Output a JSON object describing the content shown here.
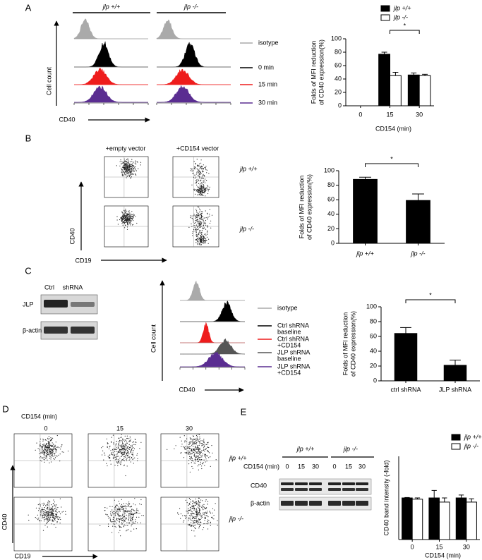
{
  "panel_labels": [
    "A",
    "B",
    "C",
    "D",
    "E"
  ],
  "chart_data": [
    {
      "type": "bar",
      "categories": [
        "0",
        "15",
        "30"
      ],
      "series": [
        {
          "name": "jlp +/+",
          "color": "#000000",
          "values": [
            0,
            77,
            46
          ],
          "errors": [
            null,
            3,
            3
          ]
        },
        {
          "name": "jlp -/-",
          "color": "#ffffff",
          "values": [
            0,
            45,
            45
          ],
          "errors": [
            null,
            5,
            2
          ]
        }
      ],
      "ylim": [
        0,
        100
      ],
      "yticks": [
        0,
        20,
        40,
        60,
        80,
        100
      ],
      "xlabel": "CD154 (min)",
      "ylabel": [
        "Folds of MFI reduction",
        "of CD40  expression(%)"
      ],
      "annotation": "*",
      "legend": "upper right"
    },
    {
      "type": "bar",
      "categories": [
        "jlp +/+",
        "jlp -/-"
      ],
      "values": [
        88,
        59
      ],
      "errors": [
        3,
        9
      ],
      "color": "#000000",
      "ylim": [
        0,
        100
      ],
      "yticks": [
        0,
        20,
        40,
        60,
        80,
        100
      ],
      "ylabel": [
        "Folds of MFI reduction",
        "of CD40  expression(%)"
      ],
      "annotation": "*"
    },
    {
      "type": "bar",
      "categories": [
        "ctrl shRNA",
        "JLP shRNA"
      ],
      "values": [
        64,
        21
      ],
      "errors": [
        8,
        7
      ],
      "color": "#000000",
      "ylim": [
        0,
        100
      ],
      "yticks": [
        0,
        20,
        40,
        60,
        80,
        100
      ],
      "ylabel": [
        "Folds of MFI reduction",
        "of CD40 expression(%)"
      ],
      "annotation": "*"
    },
    {
      "type": "bar",
      "categories": [
        "0",
        "15",
        "30"
      ],
      "series": [
        {
          "name": "jlp +/+",
          "color": "#000000",
          "values": [
            1.0,
            1.0,
            1.0
          ],
          "errors": [
            0.01,
            0.18,
            0.07
          ]
        },
        {
          "name": "jlp -/-",
          "color": "#ffffff",
          "values": [
            0.97,
            0.9,
            0.9
          ],
          "errors": [
            0.03,
            0.1,
            0.08
          ]
        }
      ],
      "ylim": [
        0,
        2
      ],
      "xlabel": "CD154 (min)",
      "ylabel": [
        "CD40 band intensity (-fold)"
      ],
      "legend": "upper right"
    }
  ],
  "panel_a": {
    "genotypes": [
      "jlp +/+",
      "jlp -/-"
    ],
    "legend": [
      "isotype",
      "0 min",
      "15 min",
      "30 min"
    ],
    "y_label": "Cell count",
    "x_label": "CD40"
  },
  "panel_b": {
    "columns": [
      "+empty vector",
      "+CD154 vector"
    ],
    "rows": [
      "jlp +/+",
      "jlp -/-"
    ],
    "y_label": "CD40",
    "x_label": "CD19"
  },
  "panel_c": {
    "blot_columns": [
      "Ctrl",
      "shRNA"
    ],
    "blot_rows": [
      "JLP",
      "β-actin"
    ],
    "legend": [
      [
        "isotype"
      ],
      [
        "Ctrl shRNA",
        "baseline"
      ],
      [
        "Ctrl shRNA",
        "+CD154"
      ],
      [
        "JLP shRNA",
        "baseline"
      ],
      [
        "JLP shRNA",
        "+CD154"
      ]
    ],
    "y_label": "Cell count",
    "x_label": "CD40"
  },
  "panel_d": {
    "condition": "CD154 (min)",
    "columns": [
      "0",
      "15",
      "30"
    ],
    "rows": [
      "jlp +/+",
      "jlp -/-"
    ],
    "y_label": "CD40",
    "x_label": "CD19"
  },
  "panel_e": {
    "genotypes": [
      "jlp +/+",
      "jlp -/-"
    ],
    "condition": "CD154 (min)",
    "lanes": [
      "0",
      "15",
      "30",
      "0",
      "15",
      "30"
    ],
    "blot_rows": [
      "CD40",
      "β-actin"
    ]
  }
}
